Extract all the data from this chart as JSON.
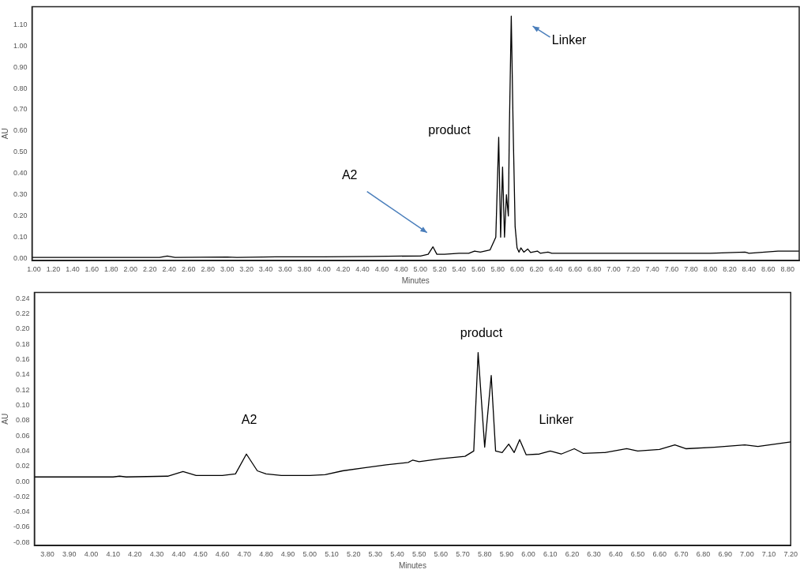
{
  "chart_data": [
    {
      "type": "line",
      "xlabel": "Minutes",
      "ylabel": "AU",
      "xlim": [
        0.98,
        8.92
      ],
      "ylim": [
        -0.01,
        1.185
      ],
      "xticks": [
        {
          "value": 1.0,
          "label": "1.00"
        },
        {
          "value": 1.2,
          "label": "1.20"
        },
        {
          "value": 1.4,
          "label": "1.40"
        },
        {
          "value": 1.6,
          "label": "1.60"
        },
        {
          "value": 1.8,
          "label": "1.80"
        },
        {
          "value": 2.0,
          "label": "2.00"
        },
        {
          "value": 2.2,
          "label": "2.20"
        },
        {
          "value": 2.4,
          "label": "2.40"
        },
        {
          "value": 2.6,
          "label": "2.60"
        },
        {
          "value": 2.8,
          "label": "2.80"
        },
        {
          "value": 3.0,
          "label": "3.00"
        },
        {
          "value": 3.2,
          "label": "3.20"
        },
        {
          "value": 3.4,
          "label": "3.40"
        },
        {
          "value": 3.6,
          "label": "3.60"
        },
        {
          "value": 3.8,
          "label": "3.80"
        },
        {
          "value": 4.0,
          "label": "4.00"
        },
        {
          "value": 4.2,
          "label": "4.20"
        },
        {
          "value": 4.4,
          "label": "4.40"
        },
        {
          "value": 4.6,
          "label": "4.60"
        },
        {
          "value": 4.8,
          "label": "4.80"
        },
        {
          "value": 5.0,
          "label": "5.00"
        },
        {
          "value": 5.2,
          "label": "5.20"
        },
        {
          "value": 5.4,
          "label": "5.40"
        },
        {
          "value": 5.6,
          "label": "5.60"
        },
        {
          "value": 5.8,
          "label": "5.80"
        },
        {
          "value": 6.0,
          "label": "6.00"
        },
        {
          "value": 6.2,
          "label": "6.20"
        },
        {
          "value": 6.4,
          "label": "6.40"
        },
        {
          "value": 6.6,
          "label": "6.60"
        },
        {
          "value": 6.8,
          "label": "6.80"
        },
        {
          "value": 7.0,
          "label": "7.00"
        },
        {
          "value": 7.2,
          "label": "7.20"
        },
        {
          "value": 7.4,
          "label": "7.40"
        },
        {
          "value": 7.6,
          "label": "7.60"
        },
        {
          "value": 7.8,
          "label": "7.80"
        },
        {
          "value": 8.0,
          "label": "8.00"
        },
        {
          "value": 8.2,
          "label": "8.20"
        },
        {
          "value": 8.4,
          "label": "8.40"
        },
        {
          "value": 8.6,
          "label": "8.60"
        },
        {
          "value": 8.8,
          "label": "8.80"
        }
      ],
      "yticks": [
        {
          "value": 0,
          "label": "0.00"
        },
        {
          "value": 0.1,
          "label": "0.10"
        },
        {
          "value": 0.2,
          "label": "0.20"
        },
        {
          "value": 0.3,
          "label": "0.30"
        },
        {
          "value": 0.4,
          "label": "0.40"
        },
        {
          "value": 0.5,
          "label": "0.50"
        },
        {
          "value": 0.6,
          "label": "0.60"
        },
        {
          "value": 0.7,
          "label": "0.70"
        },
        {
          "value": 0.8,
          "label": "0.80"
        },
        {
          "value": 0.9,
          "label": "0.90"
        },
        {
          "value": 1.0,
          "label": "1.00"
        },
        {
          "value": 1.1,
          "label": "1.10"
        }
      ],
      "series": [
        {
          "color": "#000000",
          "x": [
            0.98,
            2.3,
            2.38,
            2.46,
            3.0,
            3.1,
            3.5,
            4.0,
            4.5,
            5.0,
            5.08,
            5.13,
            5.17,
            5.25,
            5.4,
            5.5,
            5.56,
            5.62,
            5.72,
            5.78,
            5.81,
            5.83,
            5.85,
            5.87,
            5.89,
            5.91,
            5.92,
            5.94,
            5.96,
            5.98,
            6.0,
            6.02,
            6.04,
            6.07,
            6.11,
            6.14,
            6.21,
            6.24,
            6.32,
            6.36,
            6.5,
            7.0,
            7.5,
            8.0,
            8.36,
            8.4,
            8.7,
            8.92
          ],
          "values": [
            0.005,
            0.005,
            0.012,
            0.005,
            0.007,
            0.005,
            0.008,
            0.008,
            0.01,
            0.012,
            0.02,
            0.055,
            0.02,
            0.02,
            0.025,
            0.025,
            0.035,
            0.03,
            0.04,
            0.1,
            0.57,
            0.1,
            0.43,
            0.1,
            0.3,
            0.2,
            0.6,
            1.14,
            0.6,
            0.15,
            0.05,
            0.03,
            0.05,
            0.03,
            0.045,
            0.028,
            0.035,
            0.025,
            0.03,
            0.025,
            0.025,
            0.025,
            0.025,
            0.025,
            0.03,
            0.025,
            0.035,
            0.035
          ]
        }
      ],
      "annotations": [
        "A2",
        "product",
        "Linker"
      ]
    },
    {
      "type": "line",
      "xlabel": "Minutes",
      "ylabel": "AU",
      "xlim": [
        3.74,
        7.2
      ],
      "ylim": [
        -0.084,
        0.248
      ],
      "xticks": [
        {
          "value": 3.8,
          "label": "3.80"
        },
        {
          "value": 3.9,
          "label": "3.90"
        },
        {
          "value": 4.0,
          "label": "4.00"
        },
        {
          "value": 4.1,
          "label": "4.10"
        },
        {
          "value": 4.2,
          "label": "4.20"
        },
        {
          "value": 4.3,
          "label": "4.30"
        },
        {
          "value": 4.4,
          "label": "4.40"
        },
        {
          "value": 4.5,
          "label": "4.50"
        },
        {
          "value": 4.6,
          "label": "4.60"
        },
        {
          "value": 4.7,
          "label": "4.70"
        },
        {
          "value": 4.8,
          "label": "4.80"
        },
        {
          "value": 4.9,
          "label": "4.90"
        },
        {
          "value": 5.0,
          "label": "5.00"
        },
        {
          "value": 5.1,
          "label": "5.10"
        },
        {
          "value": 5.2,
          "label": "5.20"
        },
        {
          "value": 5.3,
          "label": "5.30"
        },
        {
          "value": 5.4,
          "label": "5.40"
        },
        {
          "value": 5.5,
          "label": "5.50"
        },
        {
          "value": 5.6,
          "label": "5.60"
        },
        {
          "value": 5.7,
          "label": "5.70"
        },
        {
          "value": 5.8,
          "label": "5.80"
        },
        {
          "value": 5.9,
          "label": "5.90"
        },
        {
          "value": 6.0,
          "label": "6.00"
        },
        {
          "value": 6.1,
          "label": "6.10"
        },
        {
          "value": 6.2,
          "label": "6.20"
        },
        {
          "value": 6.3,
          "label": "6.30"
        },
        {
          "value": 6.4,
          "label": "6.40"
        },
        {
          "value": 6.5,
          "label": "6.50"
        },
        {
          "value": 6.6,
          "label": "6.60"
        },
        {
          "value": 6.7,
          "label": "6.70"
        },
        {
          "value": 6.8,
          "label": "6.80"
        },
        {
          "value": 6.9,
          "label": "6.90"
        },
        {
          "value": 7.0,
          "label": "7.00"
        },
        {
          "value": 7.1,
          "label": "7.10"
        },
        {
          "value": 7.2,
          "label": "7.20"
        }
      ],
      "yticks": [
        {
          "value": -0.08,
          "label": "-0.08"
        },
        {
          "value": -0.06,
          "label": "-0.06"
        },
        {
          "value": -0.04,
          "label": "-0.04"
        },
        {
          "value": -0.02,
          "label": "-0.02"
        },
        {
          "value": 0,
          "label": "0.00"
        },
        {
          "value": 0.02,
          "label": "0.02"
        },
        {
          "value": 0.04,
          "label": "0.04"
        },
        {
          "value": 0.06,
          "label": "0.06"
        },
        {
          "value": 0.08,
          "label": "0.08"
        },
        {
          "value": 0.1,
          "label": "0.10"
        },
        {
          "value": 0.12,
          "label": "0.12"
        },
        {
          "value": 0.14,
          "label": "0.14"
        },
        {
          "value": 0.16,
          "label": "0.16"
        },
        {
          "value": 0.18,
          "label": "0.18"
        },
        {
          "value": 0.2,
          "label": "0.20"
        },
        {
          "value": 0.22,
          "label": "0.22"
        },
        {
          "value": 0.24,
          "label": "0.24"
        }
      ],
      "series": [
        {
          "color": "#000000",
          "x": [
            3.74,
            4.1,
            4.13,
            4.16,
            4.35,
            4.42,
            4.48,
            4.6,
            4.66,
            4.71,
            4.76,
            4.8,
            4.87,
            5.0,
            5.07,
            5.15,
            5.25,
            5.35,
            5.45,
            5.47,
            5.5,
            5.6,
            5.71,
            5.75,
            5.77,
            5.8,
            5.83,
            5.85,
            5.88,
            5.91,
            5.935,
            5.96,
            5.99,
            6.05,
            6.1,
            6.15,
            6.21,
            6.25,
            6.35,
            6.45,
            6.5,
            6.6,
            6.67,
            6.72,
            6.85,
            6.99,
            7.05,
            7.2
          ],
          "values": [
            0.006,
            0.006,
            0.007,
            0.006,
            0.007,
            0.013,
            0.008,
            0.008,
            0.01,
            0.036,
            0.014,
            0.01,
            0.008,
            0.008,
            0.009,
            0.014,
            0.018,
            0.022,
            0.025,
            0.028,
            0.026,
            0.03,
            0.033,
            0.04,
            0.169,
            0.045,
            0.139,
            0.04,
            0.038,
            0.049,
            0.038,
            0.055,
            0.035,
            0.036,
            0.04,
            0.036,
            0.043,
            0.037,
            0.038,
            0.043,
            0.04,
            0.042,
            0.048,
            0.043,
            0.045,
            0.048,
            0.046,
            0.052
          ]
        }
      ],
      "annotations": [
        "A2",
        "product",
        "Linker"
      ]
    }
  ]
}
